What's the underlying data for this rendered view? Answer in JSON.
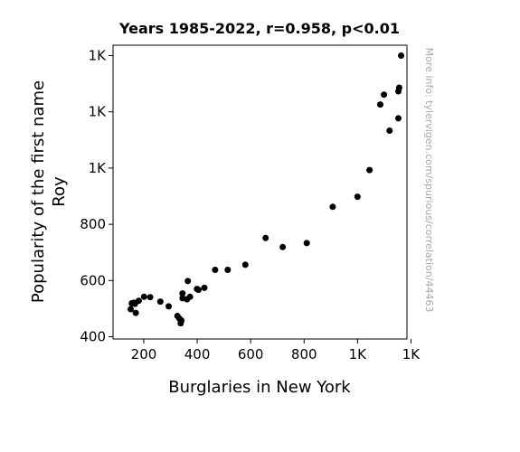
{
  "chart_data": {
    "type": "scatter",
    "title": "Years 1985-2022, r=0.958, p<0.01",
    "xlabel": "Burglaries in New York",
    "ylabel_lines": [
      "Popularity of the first name",
      "Roy"
    ],
    "watermark": "More info: tylervigen.com/spurious/correlation/44463",
    "xlim": [
      85,
      1185
    ],
    "ylim": [
      392,
      1437
    ],
    "x_ticks": [
      {
        "value": 200,
        "label": "200"
      },
      {
        "value": 400,
        "label": "400"
      },
      {
        "value": 600,
        "label": "600"
      },
      {
        "value": 800,
        "label": "800"
      },
      {
        "value": 1000,
        "label": "1K"
      },
      {
        "value": 1200,
        "label": "1K"
      }
    ],
    "y_ticks": [
      {
        "value": 400,
        "label": "400"
      },
      {
        "value": 600,
        "label": "600"
      },
      {
        "value": 800,
        "label": "800"
      },
      {
        "value": 1000,
        "label": "1K"
      },
      {
        "value": 1200,
        "label": "1K"
      },
      {
        "value": 1400,
        "label": "1K"
      }
    ],
    "grid": false,
    "point_color": "#000000",
    "points": [
      {
        "x": 1163,
        "y": 1400
      },
      {
        "x": 1156,
        "y": 1286
      },
      {
        "x": 1153,
        "y": 1273
      },
      {
        "x": 1099,
        "y": 1261
      },
      {
        "x": 1085,
        "y": 1226
      },
      {
        "x": 1153,
        "y": 1177
      },
      {
        "x": 1120,
        "y": 1133
      },
      {
        "x": 1045,
        "y": 993
      },
      {
        "x": 1000,
        "y": 898
      },
      {
        "x": 907,
        "y": 862
      },
      {
        "x": 810,
        "y": 733
      },
      {
        "x": 720,
        "y": 719
      },
      {
        "x": 656,
        "y": 751
      },
      {
        "x": 580,
        "y": 656
      },
      {
        "x": 514,
        "y": 638
      },
      {
        "x": 467,
        "y": 638
      },
      {
        "x": 427,
        "y": 574
      },
      {
        "x": 399,
        "y": 570
      },
      {
        "x": 405,
        "y": 567
      },
      {
        "x": 373,
        "y": 542
      },
      {
        "x": 365,
        "y": 598
      },
      {
        "x": 362,
        "y": 533
      },
      {
        "x": 345,
        "y": 554
      },
      {
        "x": 345,
        "y": 537
      },
      {
        "x": 341,
        "y": 458
      },
      {
        "x": 338,
        "y": 448
      },
      {
        "x": 333,
        "y": 465
      },
      {
        "x": 326,
        "y": 474
      },
      {
        "x": 293,
        "y": 508
      },
      {
        "x": 262,
        "y": 525
      },
      {
        "x": 224,
        "y": 541
      },
      {
        "x": 201,
        "y": 542
      },
      {
        "x": 181,
        "y": 528
      },
      {
        "x": 167,
        "y": 517
      },
      {
        "x": 163,
        "y": 521
      },
      {
        "x": 155,
        "y": 519
      },
      {
        "x": 151,
        "y": 498
      },
      {
        "x": 170,
        "y": 485
      }
    ]
  }
}
